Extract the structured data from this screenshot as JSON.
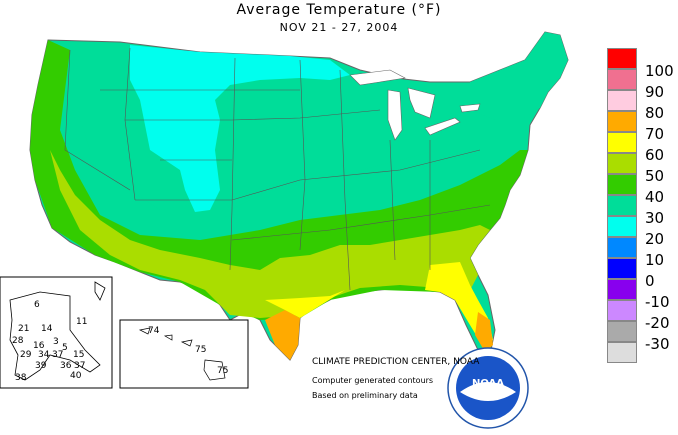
{
  "title": "Average Temperature (°F)",
  "subtitle": "NOV 21 - 27, 2004",
  "legend": {
    "labels": [
      "100",
      "90",
      "80",
      "70",
      "60",
      "50",
      "40",
      "30",
      "20",
      "10",
      "0",
      "-10",
      "-20",
      "-30"
    ],
    "colors": [
      "#ff0000",
      "#f07090",
      "#ffcce0",
      "#ffaa00",
      "#ffff00",
      "#aadd00",
      "#33cc00",
      "#00dd99",
      "#00ffee",
      "#0088ff",
      "#0000ff",
      "#8800ee",
      "#cc88ff",
      "#aaaaaa",
      "#dddddd"
    ]
  },
  "credits": {
    "center": "CLIMATE PREDICTION CENTER, NOAA",
    "line2": "Computer generated contours",
    "line3": "Based on preliminary data"
  },
  "logo": {
    "text": "NOAA"
  },
  "alaska_values": [
    "6",
    "11",
    "21",
    "14",
    "3",
    "28",
    "16",
    "5",
    "15",
    "29",
    "34",
    "37",
    "39",
    "38",
    "36",
    "37",
    "40"
  ],
  "hawaii_values": [
    "74",
    "75",
    "75"
  ]
}
